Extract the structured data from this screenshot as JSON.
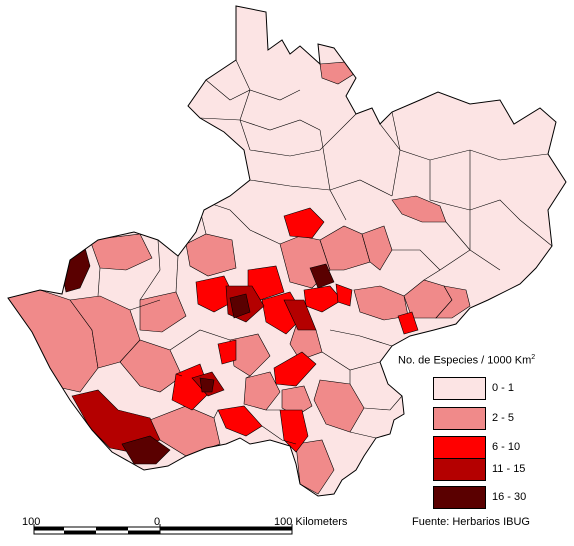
{
  "legend": {
    "title": "No. de Especies / 1000 Km",
    "title_superscript": "2",
    "classes": [
      {
        "label": "0 - 1",
        "color": "#fce4e4"
      },
      {
        "label": "2 - 5",
        "color": "#f08a8a"
      },
      {
        "label": "6 - 10",
        "color": "#ff0000"
      },
      {
        "label": "11 - 15",
        "color": "#b40000"
      },
      {
        "label": "16 - 30",
        "color": "#5a0000"
      }
    ]
  },
  "scale_bar": {
    "left_label": "100",
    "middle_label": "0",
    "right_label": "100 Kilometers"
  },
  "source": "Fuente: Herbarios IBUG"
}
